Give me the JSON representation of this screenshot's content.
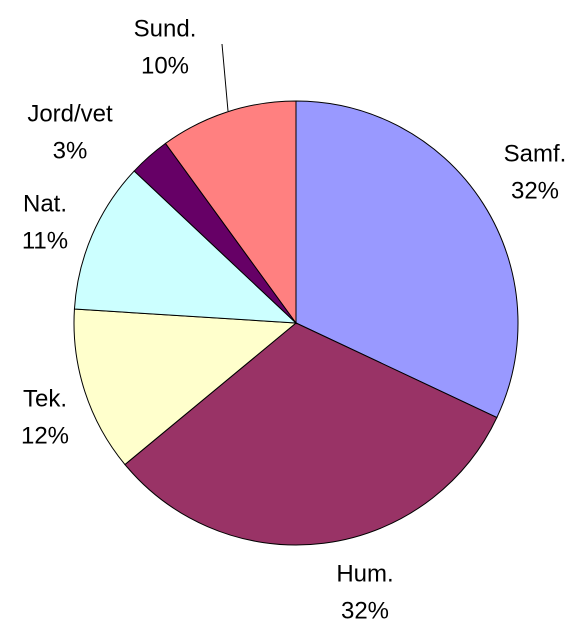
{
  "chart_data": {
    "type": "pie",
    "categories": [
      "Samf.",
      "Hum.",
      "Tek.",
      "Nat.",
      "Jord/vet",
      "Sund."
    ],
    "values": [
      32,
      32,
      12,
      11,
      3,
      10
    ],
    "value_labels": [
      "32%",
      "32%",
      "12%",
      "11%",
      "3%",
      "10%"
    ],
    "colors": [
      "#9999ff",
      "#993366",
      "#ffffcc",
      "#ccffff",
      "#660066",
      "#ff8080"
    ]
  }
}
